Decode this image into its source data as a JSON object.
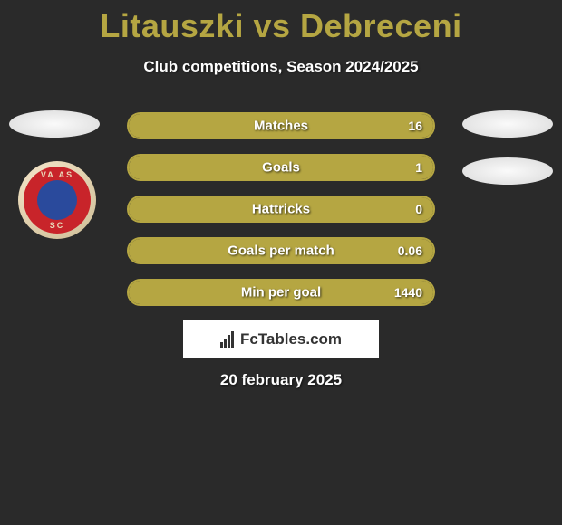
{
  "title": "Litauszki vs Debreceni",
  "subtitle": "Club competitions, Season 2024/2025",
  "date": "20 february 2025",
  "branding": "FcTables.com",
  "club_badge": {
    "text_top": "VA AS",
    "text_bottom": "SC",
    "outer_ring_color": "#e8d8b8",
    "main_color": "#c8242a",
    "center_color": "#2a4a9c"
  },
  "colors": {
    "bar_border": "#b5a642",
    "bar_fill": "#b5a642",
    "background": "#2a2a2a",
    "title_color": "#b5a642",
    "text_color": "#fefefe",
    "branding_bg": "#ffffff",
    "branding_text": "#333333"
  },
  "stats": [
    {
      "label": "Matches",
      "left_value": "",
      "right_value": "16",
      "left_fill_pct": 0,
      "right_fill_pct": 100
    },
    {
      "label": "Goals",
      "left_value": "",
      "right_value": "1",
      "left_fill_pct": 0,
      "right_fill_pct": 100
    },
    {
      "label": "Hattricks",
      "left_value": "",
      "right_value": "0",
      "left_fill_pct": 0,
      "right_fill_pct": 100
    },
    {
      "label": "Goals per match",
      "left_value": "",
      "right_value": "0.06",
      "left_fill_pct": 0,
      "right_fill_pct": 100
    },
    {
      "label": "Min per goal",
      "left_value": "",
      "right_value": "1440",
      "left_fill_pct": 0,
      "right_fill_pct": 100
    }
  ]
}
